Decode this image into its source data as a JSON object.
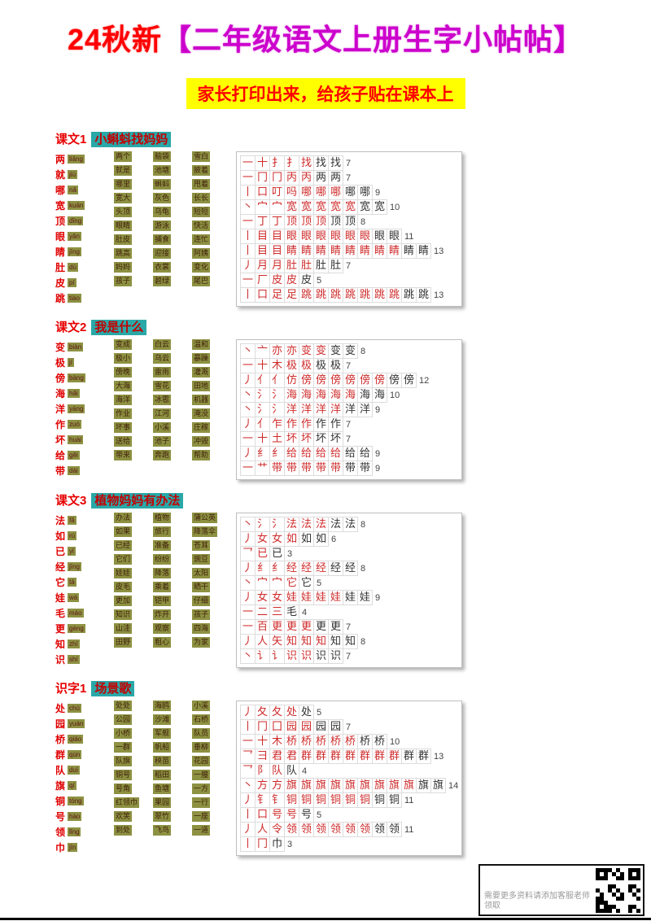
{
  "page": {
    "title_prefix": "24秋新",
    "title_main": "【二年级语文上册生字小帖帖】",
    "subtitle": "家长打印出来，给孩子贴在课本上",
    "colors": {
      "title_red": "#ff0000",
      "title_magenta": "#cc00cc",
      "banner_yellow": "#ffff00",
      "header_teal": "#2aa8a8",
      "highlight_olive": "#8d9142",
      "stroke_red": "#cf2b2b"
    }
  },
  "sections": [
    {
      "header": {
        "prefix": "课文1",
        "title": "小蝌蚪找妈妈"
      },
      "chars": [
        {
          "c": "两",
          "py": "liǎng"
        },
        {
          "c": "就",
          "py": "jiù"
        },
        {
          "c": "哪",
          "py": "nǎ"
        },
        {
          "c": "宽",
          "py": "kuān"
        },
        {
          "c": "顶",
          "py": "dǐng"
        },
        {
          "c": "眼",
          "py": "yǎn"
        },
        {
          "c": "睛",
          "py": "jīng"
        },
        {
          "c": "肚",
          "py": "dù"
        },
        {
          "c": "皮",
          "py": "pí"
        },
        {
          "c": "跳",
          "py": "tiào"
        }
      ],
      "word_cols": [
        [
          "两个",
          "就是",
          "哪里",
          "宽大",
          "头顶",
          "眼睛",
          "肚皮",
          "跳高",
          "妈妈",
          "孩子"
        ],
        [
          "脑袋",
          "池塘",
          "蝌蚪",
          "灰色",
          "乌龟",
          "游泳",
          "捕食",
          "迎接",
          "衣裳",
          "碧绿"
        ],
        [
          "雪白",
          "披着",
          "甩着",
          "长长",
          "短短",
          "快活",
          "连忙",
          "阿姨",
          "变化",
          "尾巴"
        ]
      ],
      "rows": [
        {
          "char": "找",
          "strokes": 7,
          "steps": [
            "一",
            "十",
            "扌",
            "扌",
            "找",
            "找",
            "找"
          ]
        },
        {
          "char": "两",
          "strokes": 7,
          "steps": [
            "一",
            "冂",
            "冂",
            "丙",
            "丙",
            "两",
            "两"
          ]
        },
        {
          "char": "哪",
          "strokes": 9,
          "steps": [
            "丨",
            "口",
            "叮",
            "吗",
            "哪",
            "哪",
            "哪",
            "哪",
            "哪"
          ]
        },
        {
          "char": "宽",
          "strokes": 10,
          "steps": [
            "丶",
            "宀",
            "宀",
            "宽",
            "宽",
            "宽",
            "宽",
            "宽",
            "宽",
            "宽"
          ]
        },
        {
          "char": "顶",
          "strokes": 8,
          "steps": [
            "一",
            "丁",
            "丁",
            "顶",
            "顶",
            "顶",
            "顶",
            "顶"
          ]
        },
        {
          "char": "眼",
          "strokes": 11,
          "steps": [
            "丨",
            "目",
            "目",
            "眼",
            "眼",
            "眼",
            "眼",
            "眼",
            "眼",
            "眼",
            "眼"
          ]
        },
        {
          "char": "睛",
          "strokes": 13,
          "steps": [
            "丨",
            "目",
            "目",
            "睛",
            "睛",
            "睛",
            "睛",
            "睛",
            "睛",
            "睛",
            "睛",
            "睛",
            "睛"
          ]
        },
        {
          "char": "肚",
          "strokes": 7,
          "steps": [
            "丿",
            "月",
            "月",
            "肚",
            "肚",
            "肚",
            "肚"
          ]
        },
        {
          "char": "皮",
          "strokes": 5,
          "steps": [
            "一",
            "厂",
            "皮",
            "皮",
            "皮"
          ]
        },
        {
          "char": "跳",
          "strokes": 13,
          "steps": [
            "丨",
            "口",
            "足",
            "足",
            "跳",
            "跳",
            "跳",
            "跳",
            "跳",
            "跳",
            "跳",
            "跳",
            "跳"
          ]
        }
      ]
    },
    {
      "header": {
        "prefix": "课文2",
        "title": "我是什么"
      },
      "chars": [
        {
          "c": "变",
          "py": "biàn"
        },
        {
          "c": "极",
          "py": "jí"
        },
        {
          "c": "傍",
          "py": "bàng"
        },
        {
          "c": "海",
          "py": "hǎi"
        },
        {
          "c": "洋",
          "py": "yáng"
        },
        {
          "c": "作",
          "py": "zuò"
        },
        {
          "c": "坏",
          "py": "huài"
        },
        {
          "c": "给",
          "py": "gěi"
        },
        {
          "c": "带",
          "py": "dài"
        }
      ],
      "word_cols": [
        [
          "变成",
          "极小",
          "傍晚",
          "大海",
          "海洋",
          "作业",
          "坏事",
          "送给",
          "带来"
        ],
        [
          "白云",
          "乌云",
          "雷雨",
          "雪花",
          "冰雹",
          "江河",
          "小溪",
          "池子",
          "奔跑"
        ],
        [
          "温和",
          "暴躁",
          "灌溉",
          "田地",
          "机器",
          "淹没",
          "庄稼",
          "冲毁",
          "帮助"
        ]
      ],
      "rows": [
        {
          "char": "变",
          "strokes": 8,
          "steps": [
            "丶",
            "亠",
            "亦",
            "亦",
            "变",
            "变",
            "变",
            "变"
          ]
        },
        {
          "char": "极",
          "strokes": 7,
          "steps": [
            "一",
            "十",
            "木",
            "极",
            "极",
            "极",
            "极"
          ]
        },
        {
          "char": "傍",
          "strokes": 12,
          "steps": [
            "丿",
            "亻",
            "亻",
            "仿",
            "傍",
            "傍",
            "傍",
            "傍",
            "傍",
            "傍",
            "傍",
            "傍"
          ]
        },
        {
          "char": "海",
          "strokes": 10,
          "steps": [
            "丶",
            "氵",
            "氵",
            "海",
            "海",
            "海",
            "海",
            "海",
            "海",
            "海"
          ]
        },
        {
          "char": "洋",
          "strokes": 9,
          "steps": [
            "丶",
            "氵",
            "氵",
            "洋",
            "洋",
            "洋",
            "洋",
            "洋",
            "洋"
          ]
        },
        {
          "char": "作",
          "strokes": 7,
          "steps": [
            "丿",
            "亻",
            "乍",
            "作",
            "作",
            "作",
            "作"
          ]
        },
        {
          "char": "坏",
          "strokes": 7,
          "steps": [
            "一",
            "十",
            "土",
            "坏",
            "坏",
            "坏",
            "坏"
          ]
        },
        {
          "char": "给",
          "strokes": 9,
          "steps": [
            "丿",
            "纟",
            "纟",
            "给",
            "给",
            "给",
            "给",
            "给",
            "给"
          ]
        },
        {
          "char": "带",
          "strokes": 9,
          "steps": [
            "一",
            "艹",
            "带",
            "带",
            "带",
            "带",
            "带",
            "带",
            "带"
          ]
        }
      ]
    },
    {
      "header": {
        "prefix": "课文3",
        "title": "植物妈妈有办法"
      },
      "chars": [
        {
          "c": "法",
          "py": "fǎ"
        },
        {
          "c": "如",
          "py": "rú"
        },
        {
          "c": "已",
          "py": "yǐ"
        },
        {
          "c": "经",
          "py": "jīng"
        },
        {
          "c": "它",
          "py": "tā"
        },
        {
          "c": "娃",
          "py": "wá"
        },
        {
          "c": "毛",
          "py": "máo"
        },
        {
          "c": "更",
          "py": "gèng"
        },
        {
          "c": "知",
          "py": "zhī"
        },
        {
          "c": "识",
          "py": "shí"
        }
      ],
      "word_cols": [
        [
          "办法",
          "如果",
          "已经",
          "它们",
          "娃娃",
          "皮毛",
          "更加",
          "知识",
          "山洼",
          "田野"
        ],
        [
          "植物",
          "旅行",
          "准备",
          "纷纷",
          "降落",
          "乘着",
          "铠甲",
          "炸开",
          "观察",
          "粗心"
        ],
        [
          "蒲公英",
          "降落伞",
          "苍耳",
          "豌豆",
          "太阳",
          "晒干",
          "仔细",
          "孩子",
          "四海",
          "为家"
        ]
      ],
      "rows": [
        {
          "char": "法",
          "strokes": 8,
          "steps": [
            "丶",
            "氵",
            "氵",
            "法",
            "法",
            "法",
            "法",
            "法"
          ]
        },
        {
          "char": "如",
          "strokes": 6,
          "steps": [
            "丿",
            "女",
            "女",
            "如",
            "如",
            "如"
          ]
        },
        {
          "char": "已",
          "strokes": 3,
          "steps": [
            "乛",
            "已",
            "已"
          ]
        },
        {
          "char": "经",
          "strokes": 8,
          "steps": [
            "丿",
            "纟",
            "纟",
            "经",
            "经",
            "经",
            "经",
            "经"
          ]
        },
        {
          "char": "它",
          "strokes": 5,
          "steps": [
            "丶",
            "宀",
            "宀",
            "它",
            "它"
          ]
        },
        {
          "char": "娃",
          "strokes": 9,
          "steps": [
            "丿",
            "女",
            "女",
            "娃",
            "娃",
            "娃",
            "娃",
            "娃",
            "娃"
          ]
        },
        {
          "char": "毛",
          "strokes": 4,
          "steps": [
            "一",
            "二",
            "三",
            "毛"
          ]
        },
        {
          "char": "更",
          "strokes": 7,
          "steps": [
            "一",
            "百",
            "更",
            "更",
            "更",
            "更",
            "更"
          ]
        },
        {
          "char": "知",
          "strokes": 8,
          "steps": [
            "丿",
            "人",
            "矢",
            "知",
            "知",
            "知",
            "知",
            "知"
          ]
        },
        {
          "char": "识",
          "strokes": 7,
          "steps": [
            "丶",
            "讠",
            "讠",
            "识",
            "识",
            "识",
            "识"
          ]
        }
      ]
    },
    {
      "header": {
        "prefix": "识字1",
        "title": "场景歌"
      },
      "chars": [
        {
          "c": "处",
          "py": "chù"
        },
        {
          "c": "园",
          "py": "yuán"
        },
        {
          "c": "桥",
          "py": "qiáo"
        },
        {
          "c": "群",
          "py": "qún"
        },
        {
          "c": "队",
          "py": "duì"
        },
        {
          "c": "旗",
          "py": "qí"
        },
        {
          "c": "铜",
          "py": "tóng"
        },
        {
          "c": "号",
          "py": "hào"
        },
        {
          "c": "领",
          "py": "lǐng"
        },
        {
          "c": "巾",
          "py": "jīn"
        }
      ],
      "word_cols": [
        [
          "处处",
          "公园",
          "小桥",
          "一群",
          "队旗",
          "铜号",
          "号角",
          "红领巾",
          "欢笑",
          "到处"
        ],
        [
          "海鸥",
          "沙滩",
          "军舰",
          "帆船",
          "秧苗",
          "稻田",
          "鱼塘",
          "果园",
          "翠竹",
          "飞鸟"
        ],
        [
          "小溪",
          "石桥",
          "队员",
          "垂柳",
          "花园",
          "一艘",
          "一方",
          "一行",
          "一座",
          "一道"
        ]
      ],
      "rows": [
        {
          "char": "处",
          "strokes": 5,
          "steps": [
            "丿",
            "夂",
            "夂",
            "处",
            "处"
          ]
        },
        {
          "char": "园",
          "strokes": 7,
          "steps": [
            "丨",
            "冂",
            "囗",
            "园",
            "园",
            "园",
            "园"
          ]
        },
        {
          "char": "桥",
          "strokes": 10,
          "steps": [
            "一",
            "十",
            "木",
            "桥",
            "桥",
            "桥",
            "桥",
            "桥",
            "桥",
            "桥"
          ]
        },
        {
          "char": "群",
          "strokes": 13,
          "steps": [
            "乛",
            "彐",
            "君",
            "君",
            "群",
            "群",
            "群",
            "群",
            "群",
            "群",
            "群",
            "群",
            "群"
          ]
        },
        {
          "char": "队",
          "strokes": 4,
          "steps": [
            "乛",
            "阝",
            "队",
            "队"
          ]
        },
        {
          "char": "旗",
          "strokes": 14,
          "steps": [
            "丶",
            "方",
            "方",
            "旗",
            "旗",
            "旗",
            "旗",
            "旗",
            "旗",
            "旗",
            "旗",
            "旗",
            "旗",
            "旗"
          ]
        },
        {
          "char": "铜",
          "strokes": 11,
          "steps": [
            "丿",
            "钅",
            "钅",
            "铜",
            "铜",
            "铜",
            "铜",
            "铜",
            "铜",
            "铜",
            "铜"
          ]
        },
        {
          "char": "号",
          "strokes": 5,
          "steps": [
            "丨",
            "口",
            "号",
            "号",
            "号"
          ]
        },
        {
          "char": "领",
          "strokes": 11,
          "steps": [
            "丿",
            "人",
            "令",
            "领",
            "领",
            "领",
            "领",
            "领",
            "领",
            "领",
            "领"
          ]
        },
        {
          "char": "巾",
          "strokes": 3,
          "steps": [
            "丨",
            "冂",
            "巾"
          ]
        }
      ]
    }
  ],
  "footer": {
    "note": "需要更多资料请添加客服老师领取"
  }
}
